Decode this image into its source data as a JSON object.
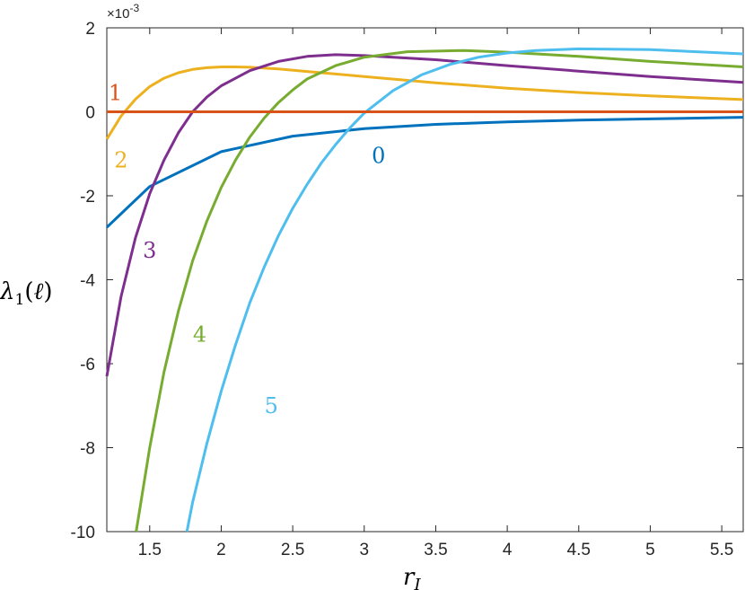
{
  "chart_data": {
    "type": "line",
    "xlabel": "r_I",
    "ylabel": "λ1(ℓ)",
    "xlim": [
      1.2,
      5.65
    ],
    "ylim": [
      -10,
      2
    ],
    "x_ticks": [
      1.5,
      2,
      2.5,
      3,
      3.5,
      4,
      4.5,
      5,
      5.5
    ],
    "y_ticks": [
      -10,
      -8,
      -6,
      -4,
      -2,
      0,
      2
    ],
    "y_exponent": "×10^-3",
    "grid": false,
    "legend": "none",
    "series": [
      {
        "name": "0",
        "color": "#0072BD",
        "x": [
          1.2,
          1.5,
          2.0,
          2.5,
          3.0,
          3.5,
          4.0,
          4.5,
          5.0,
          5.65
        ],
        "values": [
          -2.75,
          -1.78,
          -0.95,
          -0.58,
          -0.4,
          -0.3,
          -0.24,
          -0.2,
          -0.17,
          -0.13
        ]
      },
      {
        "name": "1",
        "color": "#D95319",
        "x": [
          1.2,
          5.65
        ],
        "values": [
          0.0,
          0.0
        ]
      },
      {
        "name": "2",
        "color": "#EDB120",
        "x": [
          1.2,
          1.3,
          1.4,
          1.5,
          1.6,
          1.7,
          1.8,
          1.9,
          2.0,
          2.1,
          2.2,
          2.4,
          2.6,
          2.8,
          3.0,
          3.5,
          4.0,
          4.5,
          5.0,
          5.65
        ],
        "values": [
          -0.65,
          -0.1,
          0.3,
          0.6,
          0.8,
          0.93,
          1.01,
          1.05,
          1.07,
          1.07,
          1.06,
          1.02,
          0.96,
          0.9,
          0.84,
          0.69,
          0.56,
          0.46,
          0.38,
          0.29
        ]
      },
      {
        "name": "3",
        "color": "#7E2F8E",
        "x": [
          1.2,
          1.3,
          1.4,
          1.5,
          1.6,
          1.7,
          1.8,
          1.9,
          2.0,
          2.2,
          2.4,
          2.6,
          2.8,
          3.0,
          3.5,
          4.0,
          4.5,
          5.0,
          5.65
        ],
        "values": [
          -6.3,
          -4.4,
          -3.0,
          -1.95,
          -1.15,
          -0.5,
          0.0,
          0.35,
          0.62,
          0.98,
          1.2,
          1.32,
          1.36,
          1.34,
          1.24,
          1.1,
          0.97,
          0.84,
          0.7
        ]
      },
      {
        "name": "4",
        "color": "#77AC30",
        "x": [
          1.405,
          1.5,
          1.6,
          1.7,
          1.8,
          1.9,
          2.0,
          2.1,
          2.2,
          2.3,
          2.4,
          2.5,
          2.6,
          2.8,
          3.0,
          3.3,
          3.7,
          4.0,
          4.5,
          5.0,
          5.65
        ],
        "values": [
          -10.0,
          -8.0,
          -6.2,
          -4.75,
          -3.55,
          -2.6,
          -1.8,
          -1.15,
          -0.6,
          -0.15,
          0.22,
          0.52,
          0.78,
          1.1,
          1.3,
          1.43,
          1.46,
          1.42,
          1.32,
          1.2,
          1.07
        ]
      },
      {
        "name": "5",
        "color": "#4DBEEE",
        "x": [
          1.76,
          1.8,
          1.9,
          2.0,
          2.1,
          2.2,
          2.3,
          2.4,
          2.5,
          2.6,
          2.7,
          2.8,
          2.9,
          3.0,
          3.2,
          3.4,
          3.6,
          3.8,
          4.0,
          4.2,
          4.5,
          5.0,
          5.65
        ],
        "values": [
          -10.0,
          -9.3,
          -7.9,
          -6.65,
          -5.55,
          -4.55,
          -3.7,
          -2.95,
          -2.3,
          -1.73,
          -1.22,
          -0.78,
          -0.38,
          -0.03,
          0.5,
          0.88,
          1.13,
          1.3,
          1.4,
          1.46,
          1.5,
          1.48,
          1.38
        ]
      }
    ],
    "curve_labels": [
      {
        "text": "0",
        "series": "0",
        "x": 3.1,
        "y": -1.05
      },
      {
        "text": "1",
        "series": "1",
        "x": 1.26,
        "y": 0.45
      },
      {
        "text": "2",
        "series": "2",
        "x": 1.3,
        "y": -1.15
      },
      {
        "text": "3",
        "series": "3",
        "x": 1.5,
        "y": -3.3
      },
      {
        "text": "4",
        "series": "4",
        "x": 1.85,
        "y": -5.3
      },
      {
        "text": "5",
        "series": "5",
        "x": 2.35,
        "y": -7.0
      }
    ]
  }
}
